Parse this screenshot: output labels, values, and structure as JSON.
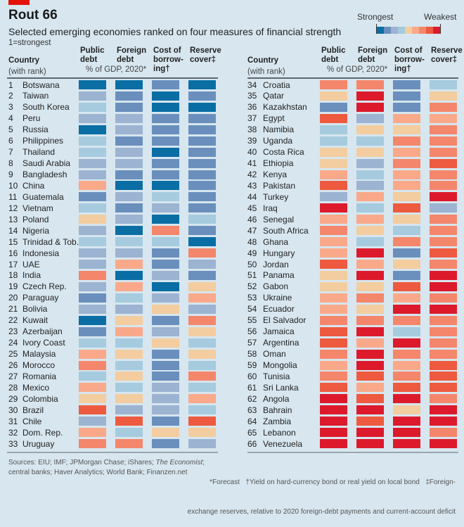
{
  "chart_data": {
    "type": "heatmap",
    "title": "Rout 66",
    "subtitle": "Selected emerging economies ranked on four measures of financial strength",
    "note": "1=strongest",
    "legend": {
      "low_label": "Strongest",
      "high_label": "Weakest",
      "placement": "top-right",
      "colors": [
        "#0a6ea4",
        "#6a8fbd",
        "#9cb3d1",
        "#a6cbde",
        "#f3cd9f",
        "#f9a98a",
        "#f4866b",
        "#ee5a3f",
        "#dc1a2c"
      ]
    },
    "level_scale": "1 (strongest) to 9 (weakest) colour bands",
    "country_header": [
      "Country",
      "(with rank)"
    ],
    "columns": [
      {
        "lines": [
          "Public",
          "debt"
        ]
      },
      {
        "lines": [
          "Foreign",
          "debt"
        ]
      },
      {
        "lines": [
          "Cost of",
          "borrow-",
          "ing†"
        ]
      },
      {
        "lines": [
          "Reserve",
          "cover‡"
        ]
      }
    ],
    "units_label": "% of GDP, 2020*",
    "rows": [
      [
        1,
        "Botswana",
        [
          1,
          1,
          2,
          1
        ]
      ],
      [
        2,
        "Taiwan",
        [
          3,
          2,
          1,
          2
        ]
      ],
      [
        3,
        "South Korea",
        [
          4,
          2,
          1,
          1
        ]
      ],
      [
        4,
        "Peru",
        [
          3,
          3,
          2,
          2
        ]
      ],
      [
        5,
        "Russia",
        [
          1,
          3,
          2,
          2
        ]
      ],
      [
        6,
        "Philippines",
        [
          4,
          2,
          2,
          2
        ]
      ],
      [
        7,
        "Thailand",
        [
          4,
          3,
          1,
          2
        ]
      ],
      [
        8,
        "Saudi Arabia",
        [
          3,
          3,
          2,
          2
        ]
      ],
      [
        9,
        "Bangladesh",
        [
          3,
          2,
          2,
          2
        ]
      ],
      [
        10,
        "China",
        [
          6,
          1,
          1,
          2
        ]
      ],
      [
        11,
        "Guatemala",
        [
          2,
          3,
          4,
          2
        ]
      ],
      [
        12,
        "Vietnam",
        [
          4,
          2,
          3,
          2
        ]
      ],
      [
        13,
        "Poland",
        [
          5,
          3,
          1,
          4
        ]
      ],
      [
        14,
        "Nigeria",
        [
          3,
          1,
          7,
          2
        ]
      ],
      [
        15,
        "Trinidad & Tob.",
        [
          4,
          4,
          4,
          1
        ]
      ],
      [
        16,
        "Indonesia",
        [
          3,
          3,
          2,
          7
        ]
      ],
      [
        17,
        "UAE",
        [
          3,
          6,
          2,
          3
        ]
      ],
      [
        18,
        "India",
        [
          7,
          1,
          3,
          2
        ]
      ],
      [
        19,
        "Czech Rep.",
        [
          3,
          6,
          1,
          5
        ]
      ],
      [
        20,
        "Paraguay",
        [
          2,
          4,
          3,
          6
        ]
      ],
      [
        21,
        "Bolivia",
        [
          3,
          3,
          5,
          3
        ]
      ],
      [
        22,
        "Kuwait",
        [
          1,
          5,
          2,
          7
        ]
      ],
      [
        23,
        "Azerbaijan",
        [
          2,
          6,
          3,
          5
        ]
      ],
      [
        24,
        "Ivory Coast",
        [
          4,
          4,
          5,
          4
        ]
      ],
      [
        25,
        "Malaysia",
        [
          6,
          5,
          2,
          5
        ]
      ],
      [
        26,
        "Morocco",
        [
          7,
          4,
          2,
          4
        ]
      ],
      [
        27,
        "Romania",
        [
          4,
          5,
          2,
          7
        ]
      ],
      [
        28,
        "Mexico",
        [
          6,
          4,
          3,
          4
        ]
      ],
      [
        29,
        "Colombia",
        [
          5,
          5,
          3,
          6
        ]
      ],
      [
        30,
        "Brazil",
        [
          8,
          3,
          3,
          4
        ]
      ],
      [
        31,
        "Chile",
        [
          3,
          8,
          2,
          8
        ]
      ],
      [
        32,
        "Dom. Rep.",
        [
          6,
          4,
          5,
          5
        ]
      ],
      [
        33,
        "Uruguay",
        [
          7,
          7,
          2,
          3
        ]
      ],
      [
        34,
        "Croatia",
        [
          7,
          7,
          2,
          4
        ]
      ],
      [
        35,
        "Qatar",
        [
          5,
          9,
          2,
          5
        ]
      ],
      [
        36,
        "Kazakhstan",
        [
          2,
          9,
          2,
          7
        ]
      ],
      [
        37,
        "Egypt",
        [
          8,
          3,
          6,
          6
        ]
      ],
      [
        38,
        "Namibia",
        [
          4,
          5,
          5,
          7
        ]
      ],
      [
        39,
        "Uganda",
        [
          4,
          4,
          7,
          7
        ]
      ],
      [
        40,
        "Costa Rica",
        [
          5,
          5,
          6,
          7
        ]
      ],
      [
        41,
        "Ethiopia",
        [
          5,
          3,
          7,
          8
        ]
      ],
      [
        42,
        "Kenya",
        [
          6,
          4,
          6,
          7
        ]
      ],
      [
        43,
        "Pakistan",
        [
          8,
          3,
          6,
          7
        ]
      ],
      [
        44,
        "Turkey",
        [
          3,
          6,
          5,
          9
        ]
      ],
      [
        45,
        "Iraq",
        [
          9,
          4,
          8,
          3
        ]
      ],
      [
        46,
        "Senegal",
        [
          6,
          6,
          5,
          7
        ]
      ],
      [
        47,
        "South Africa",
        [
          7,
          5,
          4,
          7
        ]
      ],
      [
        48,
        "Ghana",
        [
          6,
          4,
          7,
          7
        ]
      ],
      [
        49,
        "Hungary",
        [
          6,
          9,
          2,
          8
        ]
      ],
      [
        50,
        "Jordan",
        [
          8,
          6,
          5,
          7
        ]
      ],
      [
        51,
        "Panama",
        [
          5,
          9,
          2,
          9
        ]
      ],
      [
        52,
        "Gabon",
        [
          5,
          5,
          8,
          9
        ]
      ],
      [
        53,
        "Ukraine",
        [
          6,
          7,
          6,
          7
        ]
      ],
      [
        54,
        "Ecuador",
        [
          6,
          5,
          9,
          9
        ]
      ],
      [
        55,
        "El Salvador",
        [
          7,
          7,
          7,
          7
        ]
      ],
      [
        56,
        "Jamaica",
        [
          8,
          9,
          4,
          7
        ]
      ],
      [
        57,
        "Argentina",
        [
          8,
          6,
          9,
          7
        ]
      ],
      [
        58,
        "Oman",
        [
          7,
          9,
          7,
          7
        ]
      ],
      [
        59,
        "Mongolia",
        [
          6,
          9,
          6,
          8
        ]
      ],
      [
        60,
        "Tunisia",
        [
          7,
          8,
          7,
          8
        ]
      ],
      [
        61,
        "Sri Lanka",
        [
          8,
          6,
          8,
          8
        ]
      ],
      [
        62,
        "Angola",
        [
          9,
          8,
          9,
          7
        ]
      ],
      [
        63,
        "Bahrain",
        [
          9,
          9,
          5,
          9
        ]
      ],
      [
        64,
        "Zambia",
        [
          9,
          8,
          9,
          9
        ]
      ],
      [
        65,
        "Lebanon",
        [
          9,
          9,
          9,
          7
        ]
      ],
      [
        66,
        "Venezuela",
        [
          9,
          9,
          9,
          9
        ]
      ]
    ]
  },
  "footer": {
    "sources_line1_pre": "Sources: EIU; IMF; JPMorgan Chase; iShares; ",
    "sources_line1_italic": "The Economist",
    "sources_line1_post": ";",
    "sources_line2": "central banks; Haver Analytics; World Bank; Finanzen.net",
    "notes_line1": "*Forecast   †Yield on hard-currency bond or real yield on local bond   ‡Foreign-",
    "notes_line2": "exchange reserves, relative to 2020 foreign-debt payments and current-account deficit"
  }
}
